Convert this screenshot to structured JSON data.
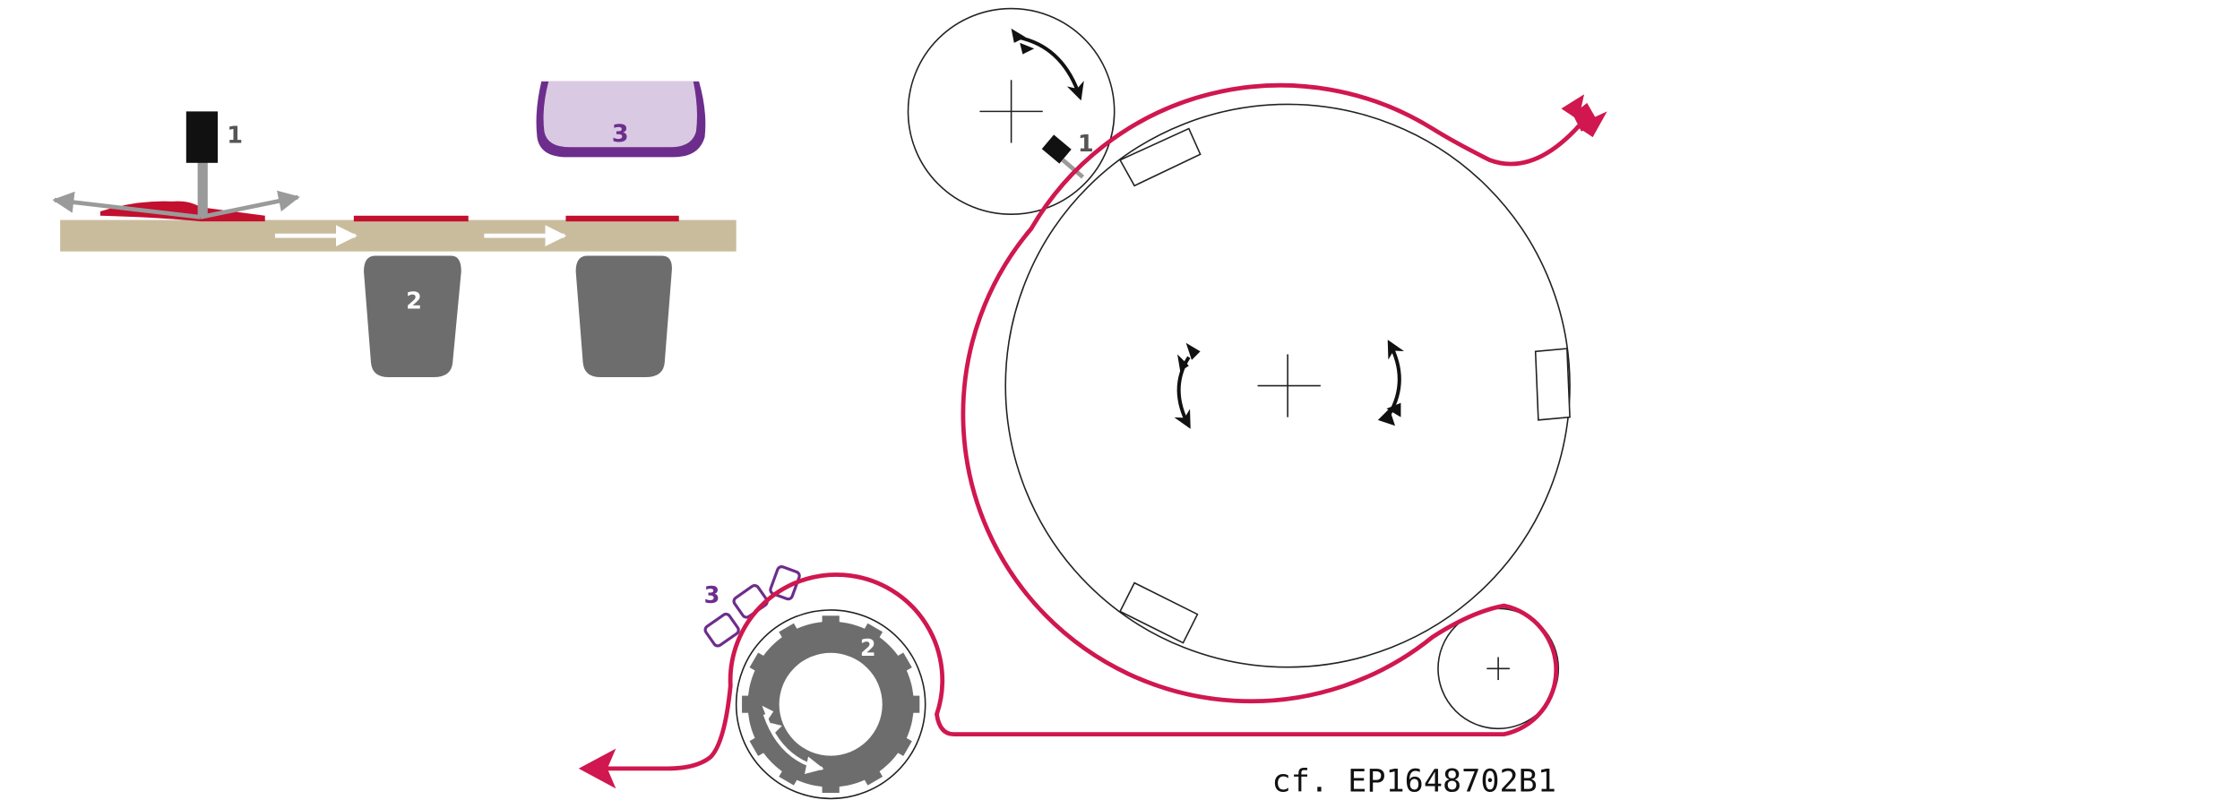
{
  "left_figure": {
    "cutter_label": "1",
    "roller_label": "2",
    "applicator_label": "3"
  },
  "right_figure": {
    "cutter_label": "1",
    "gear_label": "2",
    "pads_label": "3"
  },
  "citation": "cf. EP1648702B1",
  "colors": {
    "web": "#d0174f",
    "label_carrier": "#c9bc9d",
    "label": "#c2102e",
    "roller": "#6d6d6d",
    "applicator_fill": "#d9c9e3",
    "applicator_border": "#6c2d8c",
    "cutter": "#111111",
    "arrow_grey": "#9a9a9a",
    "arrow_white": "#ffffff",
    "outline": "#222222"
  }
}
